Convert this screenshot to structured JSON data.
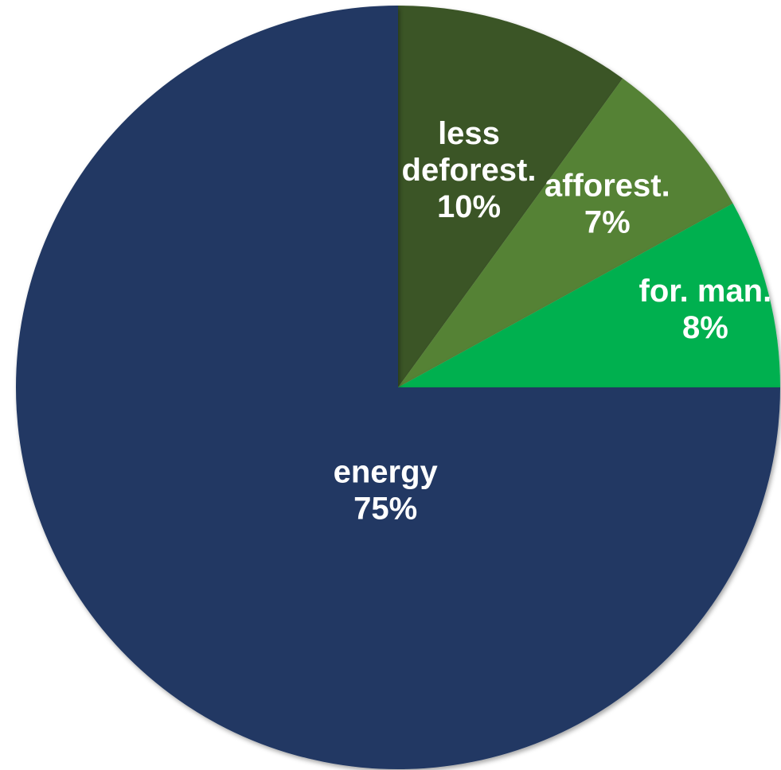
{
  "chart_data": {
    "type": "pie",
    "title": "",
    "start_angle_deg": 0,
    "direction": "clockwise",
    "slices": [
      {
        "label": "less deforest.",
        "value": 10,
        "value_label": "10%",
        "color": "#3b5526"
      },
      {
        "label": "afforest.",
        "value": 7,
        "value_label": "7%",
        "color": "#548235"
      },
      {
        "label": "for. man.",
        "value": 8,
        "value_label": "8%",
        "color": "#00b050"
      },
      {
        "label": "energy",
        "value": 75,
        "value_label": "75%",
        "color": "#203864"
      }
    ]
  }
}
